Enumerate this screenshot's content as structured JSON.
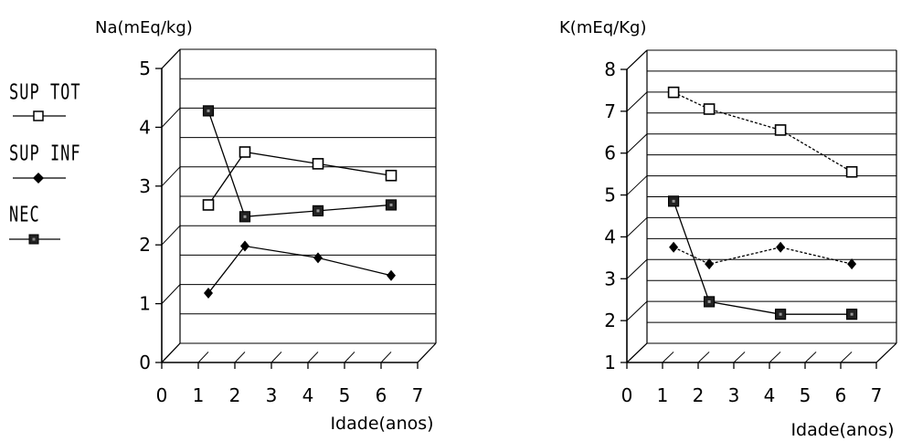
{
  "legend": {
    "items": [
      {
        "label": "SUP TOT",
        "marker": "open-square",
        "line": "solid"
      },
      {
        "label": "SUP INF",
        "marker": "filled-diamond",
        "line": "solid"
      },
      {
        "label": "NEC",
        "marker": "filled-square",
        "line": "solid"
      }
    ]
  },
  "chart_data": [
    {
      "type": "line",
      "title": "Na(mEq/kg)",
      "xlabel": "Idade(anos)",
      "ylabel": "",
      "xlim": [
        0,
        7
      ],
      "ylim": [
        0,
        5
      ],
      "xticks": [
        0,
        1,
        2,
        3,
        4,
        5,
        6,
        7
      ],
      "yticks": [
        0,
        1,
        2,
        3,
        4,
        5
      ],
      "grid": true,
      "style": "3d-box",
      "series": [
        {
          "name": "SUP TOT",
          "marker": "open-square",
          "dash": "solid",
          "x": [
            1,
            2,
            4,
            6
          ],
          "y": [
            2.5,
            3.4,
            3.2,
            3.0
          ]
        },
        {
          "name": "SUP INF",
          "marker": "filled-diamond",
          "dash": "solid",
          "x": [
            1,
            2,
            4,
            6
          ],
          "y": [
            1.0,
            1.8,
            1.6,
            1.3
          ]
        },
        {
          "name": "NEC",
          "marker": "filled-square",
          "dash": "solid",
          "x": [
            1,
            2,
            4,
            6
          ],
          "y": [
            4.1,
            2.3,
            2.4,
            2.5
          ]
        }
      ]
    },
    {
      "type": "line",
      "title": "K(mEq/Kg)",
      "xlabel": "Idade(anos)",
      "ylabel": "",
      "xlim": [
        0,
        7
      ],
      "ylim": [
        1,
        8
      ],
      "xticks": [
        0,
        1,
        2,
        3,
        4,
        5,
        6,
        7
      ],
      "yticks": [
        1,
        2,
        3,
        4,
        5,
        6,
        7,
        8
      ],
      "grid": true,
      "style": "3d-box",
      "series": [
        {
          "name": "SUP TOT",
          "marker": "open-square",
          "dash": "dashed",
          "x": [
            1,
            2,
            4,
            6
          ],
          "y": [
            7.2,
            6.8,
            6.3,
            5.3
          ]
        },
        {
          "name": "SUP INF",
          "marker": "filled-diamond",
          "dash": "dashed",
          "x": [
            1,
            2,
            4,
            6
          ],
          "y": [
            3.5,
            3.1,
            3.5,
            3.1
          ]
        },
        {
          "name": "NEC",
          "marker": "filled-square",
          "dash": "solid",
          "x": [
            1,
            2,
            4,
            6
          ],
          "y": [
            4.6,
            2.2,
            1.9,
            1.9
          ]
        }
      ]
    }
  ]
}
